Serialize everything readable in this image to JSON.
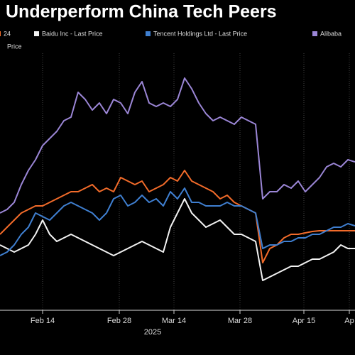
{
  "chart_data": {
    "type": "line",
    "title": "Underperform China Tech Peers",
    "legend_continuation": "Price",
    "x_axis_label": "2025",
    "x": [
      0,
      2,
      4,
      6,
      8,
      10,
      12,
      14,
      16,
      18,
      20,
      22,
      24,
      26,
      28,
      30,
      32,
      34,
      36,
      38,
      40,
      42,
      44,
      46,
      48,
      50,
      52,
      54,
      56,
      58,
      60,
      62,
      64,
      66,
      68,
      70,
      72,
      74,
      76,
      78,
      80,
      82,
      84,
      86,
      88,
      90,
      92,
      94,
      96,
      98,
      100
    ],
    "xlim": [
      0,
      100
    ],
    "xticks": [
      {
        "value": 12,
        "label": "Feb 14"
      },
      {
        "value": 33.6,
        "label": "Feb 28"
      },
      {
        "value": 49,
        "label": "Mar 14"
      },
      {
        "value": 67.6,
        "label": "Mar 28"
      },
      {
        "value": 85.6,
        "label": "Apr 15"
      },
      {
        "value": 98.4,
        "label": "Ap"
      }
    ],
    "ylim": [
      0,
      100
    ],
    "grid": true,
    "series": [
      {
        "name": "24",
        "color": "#f26b2a",
        "values": [
          27.5,
          30,
          32.5,
          35,
          36.25,
          37.5,
          37.5,
          38.75,
          40,
          41.25,
          42.5,
          42.5,
          43.75,
          45,
          42.5,
          43.75,
          42.5,
          47.5,
          46.25,
          45,
          46.25,
          42.5,
          43.75,
          45,
          47.5,
          46.25,
          50,
          46.25,
          45,
          43.75,
          42.5,
          40,
          41.25,
          38.75,
          37.5,
          36.25,
          35,
          17.5,
          22.5,
          23.75,
          26.25,
          27.5,
          27.5,
          28,
          28.5,
          28.75,
          28.75,
          28.75,
          28.75,
          28.75,
          28.75
        ]
      },
      {
        "name": "Baidu Inc - Last Price",
        "color": "#f2f2f2",
        "values": [
          23.75,
          22.5,
          21.25,
          22.5,
          23.75,
          27.5,
          32.5,
          27.5,
          25,
          26.25,
          27.5,
          26.25,
          25,
          23.75,
          22.5,
          21.25,
          20,
          21.25,
          22.5,
          23.75,
          25,
          23.75,
          22.5,
          21.25,
          30,
          35,
          40,
          35,
          32.5,
          30,
          31.25,
          32.5,
          30,
          27.5,
          27.5,
          26.25,
          25,
          11.25,
          12.5,
          13.75,
          15,
          16.25,
          16.25,
          17.5,
          18.75,
          18.75,
          20,
          21.25,
          23.75,
          22.5,
          22.5
        ]
      },
      {
        "name": "Tencent Holdings Ltd - Last Price",
        "color": "#3f7fd0",
        "values": [
          20,
          21.25,
          23.75,
          27.5,
          30,
          35,
          33.75,
          32.5,
          35,
          37.5,
          38.75,
          37.5,
          36.25,
          35,
          32.5,
          35,
          40,
          41.25,
          37.5,
          38.75,
          41.25,
          38.75,
          40,
          37.5,
          42.5,
          40,
          43.75,
          38.75,
          38.75,
          37.5,
          37.5,
          37.5,
          38.75,
          37.5,
          37.5,
          36.25,
          35,
          22.5,
          23.75,
          23.75,
          25,
          25,
          26.25,
          26.25,
          27.5,
          27.5,
          28.75,
          30,
          30,
          31.25,
          30.5
        ]
      },
      {
        "name": "Alibaba",
        "color": "#9b86d6",
        "values": [
          35,
          36.25,
          38.75,
          45,
          50,
          53.75,
          58.75,
          61.25,
          63.75,
          67.5,
          68.75,
          77.5,
          75,
          71.25,
          73.75,
          70,
          75,
          73.75,
          70,
          77.5,
          81.25,
          73.75,
          72.5,
          73.75,
          72.5,
          75,
          82.5,
          78.75,
          73.75,
          70,
          67.5,
          68.75,
          67.5,
          66.25,
          68.75,
          67.5,
          66.25,
          40,
          42.5,
          42.5,
          45,
          43.75,
          46.25,
          42.5,
          45,
          47.5,
          51.25,
          52.5,
          51.25,
          53.75,
          53
        ]
      }
    ]
  }
}
